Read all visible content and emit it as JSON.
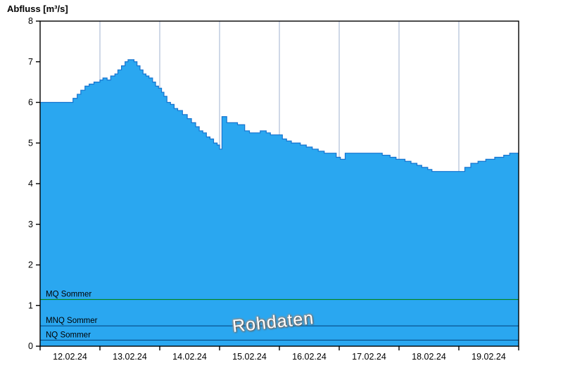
{
  "title": "Abfluss [m³/s]",
  "watermark": "Rohdaten",
  "chart_data": {
    "type": "area",
    "step": true,
    "title": "Abfluss [m³/s]",
    "xlabel": "",
    "ylabel": "Abfluss [m³/s]",
    "x_range": [
      0,
      8
    ],
    "ylim": [
      0,
      8
    ],
    "grid": "vertical-only",
    "x_labels": [
      "12.02.24",
      "13.02.24",
      "14.02.24",
      "15.02.24",
      "16.02.24",
      "17.02.24",
      "18.02.24",
      "19.02.24"
    ],
    "y_ticks": [
      0,
      1,
      2,
      3,
      4,
      5,
      6,
      7,
      8
    ],
    "series": [
      {
        "name": "Abfluss Rohdaten",
        "points": [
          [
            0.0,
            6.0
          ],
          [
            0.55,
            6.1
          ],
          [
            0.62,
            6.2
          ],
          [
            0.68,
            6.3
          ],
          [
            0.75,
            6.4
          ],
          [
            0.82,
            6.45
          ],
          [
            0.9,
            6.5
          ],
          [
            1.0,
            6.55
          ],
          [
            1.05,
            6.6
          ],
          [
            1.12,
            6.55
          ],
          [
            1.18,
            6.65
          ],
          [
            1.25,
            6.7
          ],
          [
            1.3,
            6.8
          ],
          [
            1.36,
            6.9
          ],
          [
            1.42,
            7.0
          ],
          [
            1.47,
            7.05
          ],
          [
            1.57,
            7.0
          ],
          [
            1.62,
            6.9
          ],
          [
            1.67,
            6.8
          ],
          [
            1.72,
            6.7
          ],
          [
            1.77,
            6.65
          ],
          [
            1.82,
            6.6
          ],
          [
            1.88,
            6.5
          ],
          [
            1.93,
            6.4
          ],
          [
            1.98,
            6.35
          ],
          [
            2.03,
            6.25
          ],
          [
            2.07,
            6.15
          ],
          [
            2.12,
            6.0
          ],
          [
            2.18,
            5.95
          ],
          [
            2.24,
            5.85
          ],
          [
            2.3,
            5.8
          ],
          [
            2.38,
            5.7
          ],
          [
            2.46,
            5.6
          ],
          [
            2.53,
            5.5
          ],
          [
            2.6,
            5.4
          ],
          [
            2.66,
            5.3
          ],
          [
            2.72,
            5.25
          ],
          [
            2.78,
            5.15
          ],
          [
            2.84,
            5.1
          ],
          [
            2.9,
            5.0
          ],
          [
            2.96,
            4.95
          ],
          [
            3.0,
            4.85
          ],
          [
            3.04,
            5.65
          ],
          [
            3.12,
            5.5
          ],
          [
            3.3,
            5.45
          ],
          [
            3.42,
            5.3
          ],
          [
            3.5,
            5.25
          ],
          [
            3.68,
            5.3
          ],
          [
            3.78,
            5.25
          ],
          [
            3.85,
            5.2
          ],
          [
            4.05,
            5.1
          ],
          [
            4.12,
            5.05
          ],
          [
            4.2,
            5.0
          ],
          [
            4.35,
            4.95
          ],
          [
            4.45,
            4.9
          ],
          [
            4.55,
            4.85
          ],
          [
            4.65,
            4.8
          ],
          [
            4.75,
            4.75
          ],
          [
            4.95,
            4.65
          ],
          [
            5.02,
            4.6
          ],
          [
            5.1,
            4.75
          ],
          [
            5.72,
            4.7
          ],
          [
            5.85,
            4.65
          ],
          [
            5.95,
            4.6
          ],
          [
            6.1,
            4.55
          ],
          [
            6.2,
            4.5
          ],
          [
            6.3,
            4.45
          ],
          [
            6.38,
            4.4
          ],
          [
            6.48,
            4.35
          ],
          [
            6.55,
            4.3
          ],
          [
            7.0,
            4.3
          ],
          [
            7.1,
            4.4
          ],
          [
            7.2,
            4.5
          ],
          [
            7.32,
            4.55
          ],
          [
            7.45,
            4.6
          ],
          [
            7.6,
            4.65
          ],
          [
            7.75,
            4.7
          ],
          [
            7.85,
            4.75
          ],
          [
            8.0,
            4.75
          ]
        ]
      }
    ],
    "ref_lines": [
      {
        "label": "MQ Sommer",
        "value": 1.15,
        "color": "#008000"
      },
      {
        "label": "MNQ Sommer",
        "value": 0.5,
        "color": "#00407a"
      },
      {
        "label": "NQ Sommer",
        "value": 0.15,
        "color": "#00407a"
      }
    ],
    "colors": {
      "fill": "#2aa7f0",
      "line": "#1673cf",
      "grid": "#9fb0cf",
      "axis": "#000000"
    }
  }
}
